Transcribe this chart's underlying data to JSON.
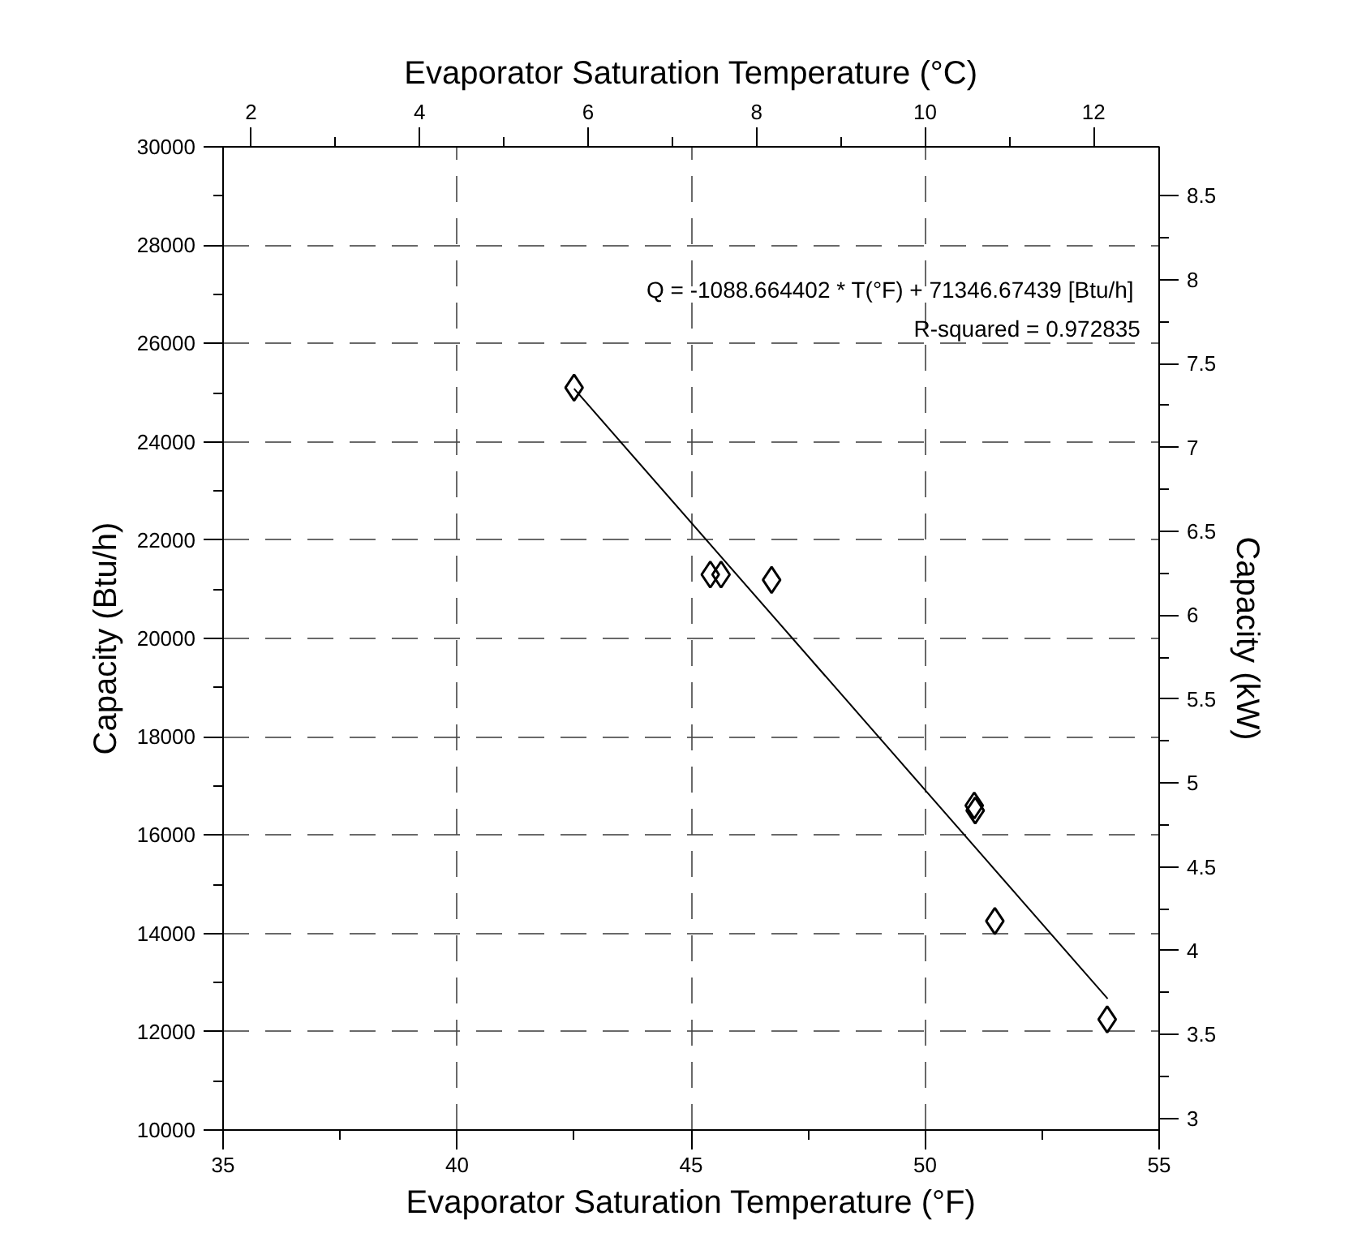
{
  "chart_data": {
    "type": "scatter",
    "xlabel": "Evaporator Saturation Temperature (°F)",
    "x2label": "Evaporator Saturation Temperature (°C)",
    "ylabel": "Capacity (Btu/h)",
    "y2label": "Capacity (kW)",
    "xlim": [
      35,
      55
    ],
    "xticks": [
      35,
      40,
      45,
      50,
      55
    ],
    "x2lim": [
      1.667,
      12.778
    ],
    "x2ticks": [
      2,
      4,
      6,
      8,
      10,
      12
    ],
    "ylim": [
      10000,
      30000
    ],
    "yticks": [
      10000,
      12000,
      14000,
      16000,
      18000,
      20000,
      22000,
      24000,
      26000,
      28000,
      30000
    ],
    "y2lim": [
      2.931,
      8.792
    ],
    "y2ticks": [
      3,
      3.5,
      4,
      4.5,
      5,
      5.5,
      6,
      6.5,
      7,
      7.5,
      8,
      8.5
    ],
    "grid": true,
    "marker": "diamond",
    "annotations": [
      "Q = -1088.664402  * T(°F) + 71346.67439 [Btu/h]",
      "R-squared = 0.972835"
    ],
    "series": [
      {
        "color": "#000000",
        "x": [
          42.5,
          45.41,
          45.64,
          46.72,
          51.05,
          51.07,
          51.49,
          53.89
        ],
        "values": [
          25100,
          21300,
          21300,
          21190,
          16600,
          16500,
          14250,
          12250
        ]
      },
      {
        "type": "line",
        "color": "#000000",
        "marker": "none",
        "x": [
          42.5,
          53.9
        ],
        "values": [
          25080,
          12670
        ]
      }
    ]
  }
}
